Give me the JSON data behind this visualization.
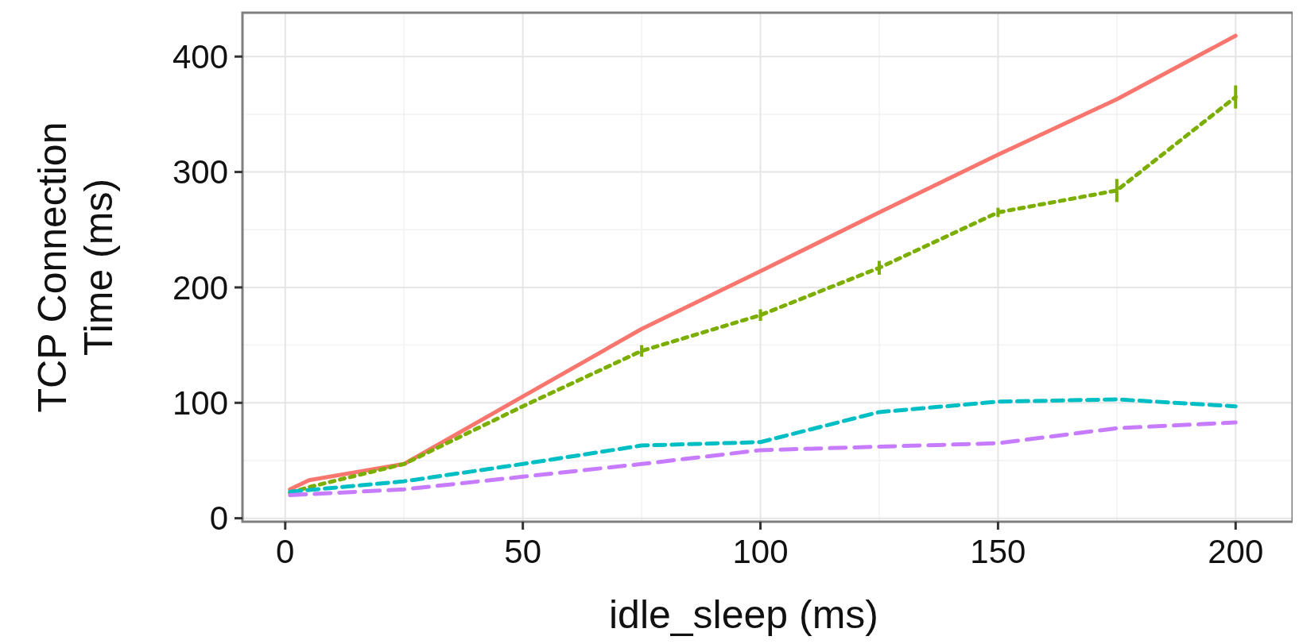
{
  "chart_data": {
    "type": "line",
    "xlabel": "idle_sleep (ms)",
    "ylabel": "TCP Connection\nTime (ms)",
    "xlim": [
      -9,
      212
    ],
    "ylim": [
      -3,
      438
    ],
    "xticks": [
      0,
      50,
      100,
      150,
      200
    ],
    "yticks": [
      0,
      100,
      200,
      300,
      400
    ],
    "grid": true,
    "series": [
      {
        "color": "#f8766d",
        "line_style": "solid",
        "x": [
          1,
          5,
          25,
          75,
          100,
          125,
          150,
          175,
          200
        ],
        "values": [
          25,
          33,
          47,
          164,
          214,
          265,
          315,
          363,
          418
        ]
      },
      {
        "color": "#7cae00",
        "line_style": "dotted",
        "x": [
          1,
          5,
          25,
          50,
          75,
          100,
          125,
          150,
          175,
          200
        ],
        "values": [
          22,
          27,
          47,
          97,
          145,
          176,
          217,
          265,
          284,
          365
        ],
        "errors": [
          null,
          null,
          null,
          null,
          5,
          5,
          6,
          4,
          10,
          10
        ]
      },
      {
        "color": "#00bfc4",
        "line_style": "dashed",
        "x": [
          1,
          25,
          50,
          75,
          100,
          125,
          150,
          175,
          200
        ],
        "values": [
          23,
          32,
          47,
          63,
          66,
          92,
          101,
          103,
          97
        ]
      },
      {
        "color": "#c77cff",
        "line_style": "longdash",
        "x": [
          1,
          25,
          50,
          75,
          100,
          125,
          150,
          175,
          200
        ],
        "values": [
          20,
          25,
          36,
          47,
          59,
          62,
          65,
          78,
          83
        ]
      }
    ]
  }
}
